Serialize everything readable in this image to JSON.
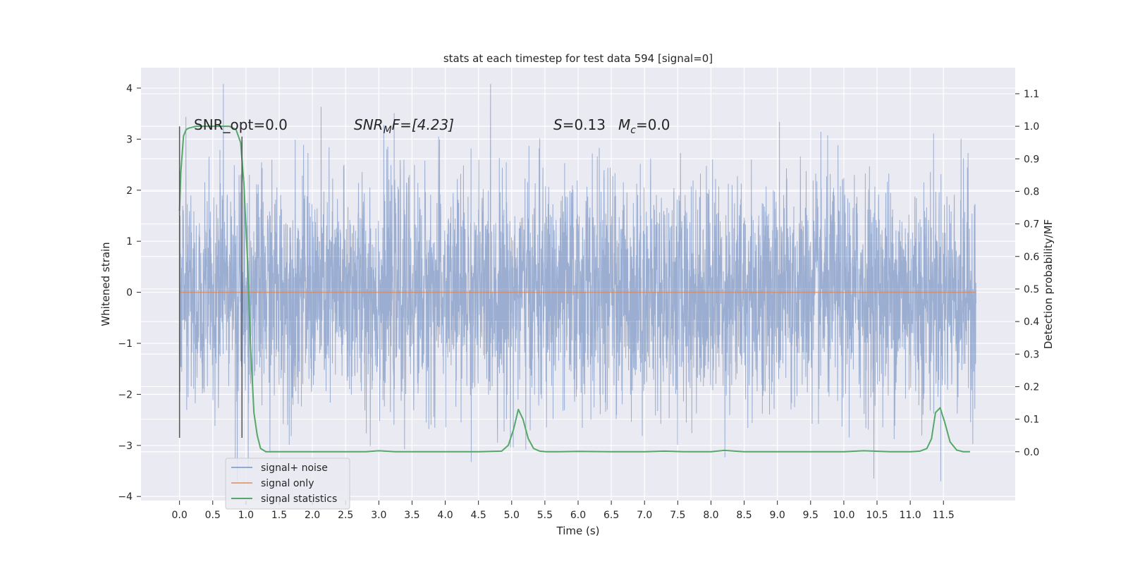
{
  "chart_data": {
    "type": "line",
    "title": "stats at each timestep for test data 594 [signal=0]",
    "xlabel": "Time (s)",
    "ylabel": "Whitened strain",
    "y2label": "Detection probability/MF",
    "xlim": [
      -0.58,
      12.58
    ],
    "ylim": [
      -4.08,
      4.4
    ],
    "y2lim": [
      -0.15,
      1.18
    ],
    "xticks": [
      "0.0",
      "0.5",
      "1.0",
      "1.5",
      "2.0",
      "2.5",
      "3.0",
      "3.5",
      "4.0",
      "4.5",
      "5.0",
      "5.5",
      "6.0",
      "6.5",
      "7.0",
      "7.5",
      "8.0",
      "8.5",
      "9.0",
      "9.5",
      "10.0",
      "10.5",
      "11.0",
      "11.5"
    ],
    "yticks": [
      "−4",
      "−3",
      "−2",
      "−1",
      "0",
      "1",
      "2",
      "3",
      "4"
    ],
    "y2ticks": [
      "0.0",
      "0.1",
      "0.2",
      "0.3",
      "0.4",
      "0.5",
      "0.6",
      "0.7",
      "0.8",
      "0.9",
      "1.0",
      "1.1"
    ],
    "legend_position": "lower-left",
    "grid": true,
    "colors": {
      "background": "#eaeaf2",
      "grid": "#ffffff",
      "noise": "#4c72b0",
      "signal": "#dd8452",
      "stats": "#55a868",
      "marker": "#555555"
    },
    "annotations": {
      "snr_opt": "SNR_opt=0.0",
      "snr_mf_main": "SNR",
      "snr_mf_sub": "M",
      "snr_mf_rest": "F=[4.23]",
      "s_main": "S",
      "s_rest": "=0.13",
      "mc_main": "M",
      "mc_sub": "c",
      "mc_rest": "=0.0"
    },
    "series": [
      {
        "name": "signal+ noise",
        "axis": "left",
        "x_range": [
          0.0,
          11.99
        ],
        "typical_amplitude": 1.1,
        "peak_max": 4.08,
        "peak_min": -3.7
      },
      {
        "name": "signal only",
        "axis": "left",
        "x": [
          0.0,
          11.99
        ],
        "y": [
          0.0,
          0.0
        ]
      },
      {
        "name": "signal statistics",
        "axis": "right",
        "x": [
          0.0,
          0.02,
          0.06,
          0.1,
          0.15,
          0.25,
          0.5,
          0.75,
          0.85,
          0.92,
          0.97,
          1.02,
          1.07,
          1.12,
          1.17,
          1.22,
          1.3,
          1.5,
          2.0,
          2.5,
          2.8,
          3.0,
          3.25,
          4.0,
          4.5,
          4.85,
          4.95,
          5.03,
          5.1,
          5.17,
          5.25,
          5.33,
          5.42,
          5.52,
          5.7,
          6.0,
          6.5,
          7.0,
          7.3,
          7.6,
          8.0,
          8.2,
          8.5,
          9.0,
          9.5,
          10.0,
          10.3,
          10.7,
          11.0,
          11.15,
          11.25,
          11.32,
          11.38,
          11.45,
          11.52,
          11.6,
          11.7,
          11.8,
          11.9
        ],
        "y": [
          0.74,
          0.86,
          0.97,
          0.99,
          0.995,
          1.0,
          1.0,
          1.0,
          0.99,
          0.95,
          0.82,
          0.6,
          0.32,
          0.12,
          0.05,
          0.01,
          0.0,
          0.0,
          0.0,
          0.0,
          0.0,
          0.003,
          0.0,
          0.0,
          0.0,
          0.002,
          0.02,
          0.07,
          0.13,
          0.1,
          0.04,
          0.01,
          0.002,
          0.0,
          0.0,
          0.001,
          0.0,
          0.0,
          0.002,
          0.0,
          0.0,
          0.004,
          0.0,
          0.0,
          0.0,
          0.0,
          0.003,
          0.0,
          0.0,
          0.002,
          0.01,
          0.04,
          0.12,
          0.135,
          0.09,
          0.03,
          0.005,
          0.0,
          0.0
        ]
      }
    ],
    "markers": [
      {
        "x": 0.0,
        "y_from": -2.85,
        "y_to": 3.25
      },
      {
        "x": 0.94,
        "y_from": -2.85,
        "y_to": 3.05
      }
    ]
  }
}
